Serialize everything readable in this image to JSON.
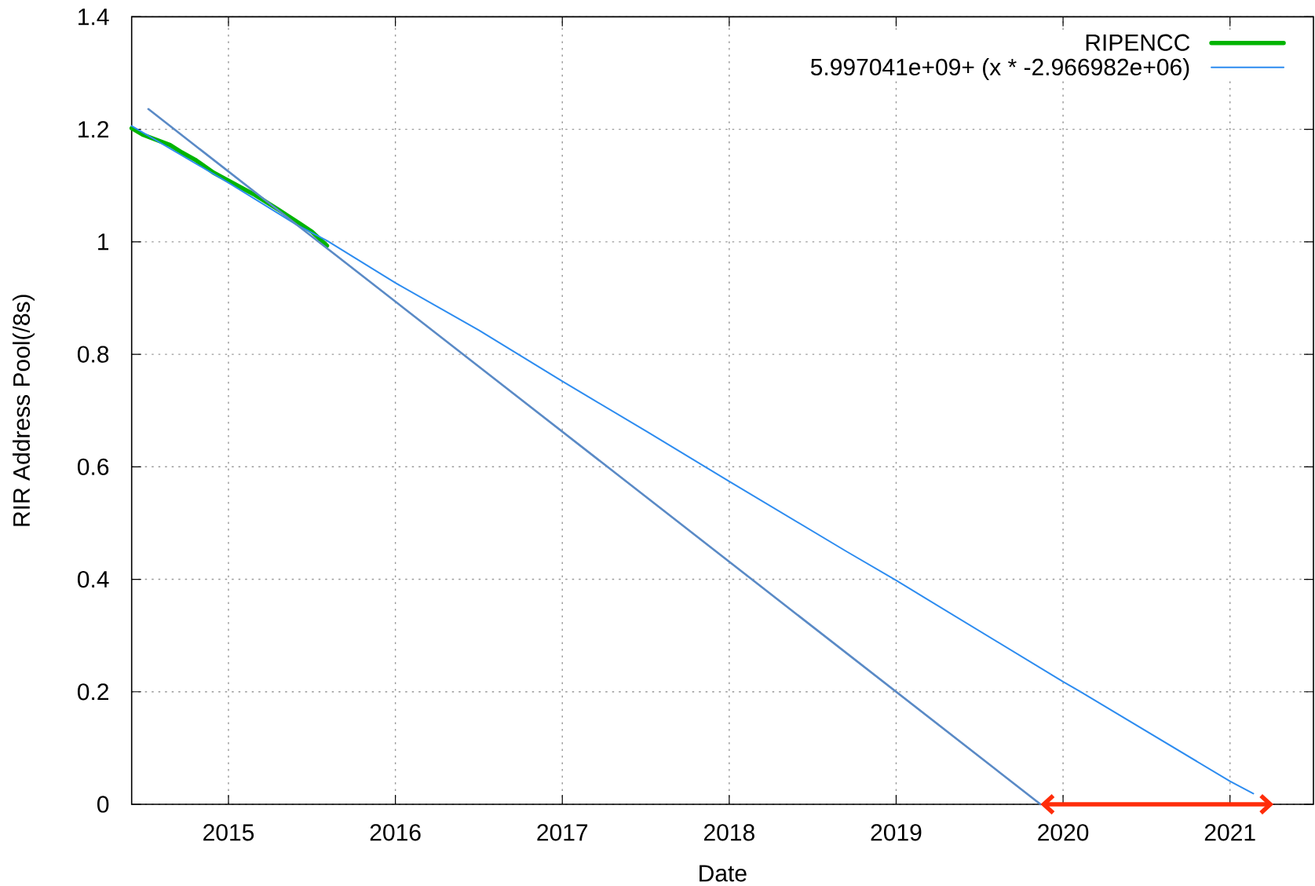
{
  "chart_data": {
    "type": "line",
    "xlabel": "Date",
    "ylabel": "RIR Address Pool(/8s)",
    "xlim": [
      2014.42,
      2021.5
    ],
    "ylim": [
      0,
      1.4
    ],
    "xticks": [
      2015,
      2016,
      2017,
      2018,
      2019,
      2020,
      2021
    ],
    "yticks": [
      0,
      0.2,
      0.4,
      0.6,
      0.8,
      1,
      1.2,
      1.4
    ],
    "grid": true,
    "legend": "top right",
    "series": [
      {
        "name": "RIPENCC",
        "color": "#00b400",
        "x": [
          2014.42,
          2014.49,
          2014.65,
          2014.72,
          2014.8,
          2014.91,
          2015.01,
          2015.16,
          2015.3,
          2015.43,
          2015.5,
          2015.59
        ],
        "values": [
          1.202,
          1.19,
          1.172,
          1.159,
          1.146,
          1.123,
          1.107,
          1.083,
          1.057,
          1.032,
          1.018,
          0.993
        ]
      },
      {
        "name": "5.997041e+09+ (x * -2.966982e+06)",
        "color": "#2d8cf0",
        "x": [
          2014.42,
          2015,
          2015.41,
          2015.59,
          2016,
          2016.5,
          2017,
          2017.51,
          2018,
          2018.7,
          2019,
          2020,
          2020.1,
          2021,
          2021.14
        ],
        "values": [
          1.206,
          1.105,
          1.03,
          1.002,
          0.927,
          0.843,
          0.752,
          0.662,
          0.574,
          0.45,
          0.398,
          0.218,
          0.201,
          0.041,
          0.019
        ]
      },
      {
        "color": "#5a8ac6",
        "x": [
          2014.52,
          2019.865
        ],
        "values": [
          1.236,
          0
        ]
      }
    ]
  }
}
